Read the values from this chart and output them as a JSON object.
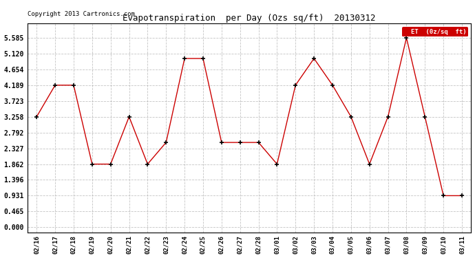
{
  "title": "Evapotranspiration  per Day (Ozs sq/ft)  20130312",
  "copyright": "Copyright 2013 Cartronics.com",
  "legend_label": "ET  (0z/sq  ft)",
  "x_labels": [
    "02/16",
    "02/17",
    "02/18",
    "02/19",
    "02/20",
    "02/21",
    "02/22",
    "02/23",
    "02/24",
    "02/25",
    "02/26",
    "02/27",
    "02/28",
    "03/01",
    "03/02",
    "03/03",
    "03/04",
    "03/05",
    "03/06",
    "03/07",
    "03/08",
    "03/09",
    "03/10",
    "03/11"
  ],
  "y_values": [
    3.258,
    4.189,
    4.189,
    1.862,
    1.862,
    3.258,
    1.862,
    2.5,
    4.975,
    4.975,
    2.5,
    2.5,
    2.5,
    1.862,
    4.189,
    4.975,
    4.189,
    3.258,
    1.862,
    3.258,
    5.585,
    3.258,
    0.931,
    0.931
  ],
  "yticks": [
    0.0,
    0.465,
    0.931,
    1.396,
    1.862,
    2.327,
    2.792,
    3.258,
    3.723,
    4.189,
    4.654,
    5.12,
    5.585
  ],
  "line_color": "#cc0000",
  "marker_color": "#000000",
  "background_color": "#ffffff",
  "grid_color": "#aaaaaa",
  "legend_bg": "#cc0000",
  "legend_fg": "#ffffff",
  "ylim_min": -0.15,
  "ylim_max": 6.0
}
